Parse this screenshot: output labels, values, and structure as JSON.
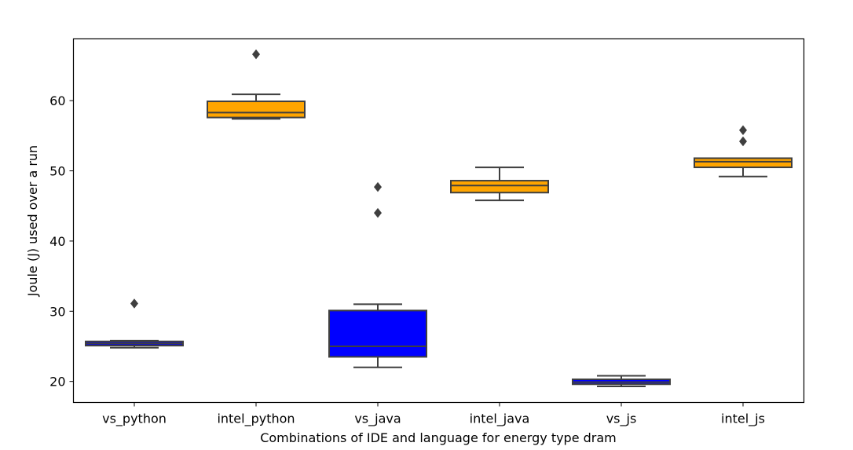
{
  "chart_data": {
    "type": "boxplot",
    "title": "",
    "xlabel": "Combinations of IDE and language for energy type dram",
    "ylabel": "Joule (J) used over a run",
    "ylim": [
      17.0,
      68.8
    ],
    "yticks": [
      20,
      30,
      40,
      50,
      60
    ],
    "grid": false,
    "categories": [
      "vs_python",
      "intel_python",
      "vs_java",
      "intel_java",
      "vs_js",
      "intel_js"
    ],
    "boxes": [
      {
        "category": "vs_python",
        "color": "#0000ff",
        "whisker_low": 24.8,
        "q1": 25.1,
        "median": 25.4,
        "q3": 25.7,
        "whisker_high": 25.8,
        "outliers": [
          31.1
        ]
      },
      {
        "category": "intel_python",
        "color": "#ffa500",
        "whisker_low": 57.4,
        "q1": 57.6,
        "median": 58.3,
        "q3": 59.9,
        "whisker_high": 60.9,
        "outliers": [
          66.6
        ]
      },
      {
        "category": "vs_java",
        "color": "#0000ff",
        "whisker_low": 22.0,
        "q1": 23.5,
        "median": 25.0,
        "q3": 30.1,
        "whisker_high": 31.0,
        "outliers": [
          47.7,
          44.0
        ]
      },
      {
        "category": "intel_java",
        "color": "#ffa500",
        "whisker_low": 45.8,
        "q1": 46.9,
        "median": 47.9,
        "q3": 48.6,
        "whisker_high": 50.5,
        "outliers": []
      },
      {
        "category": "vs_js",
        "color": "#0000ff",
        "whisker_low": 19.3,
        "q1": 19.6,
        "median": 19.9,
        "q3": 20.3,
        "whisker_high": 20.8,
        "outliers": []
      },
      {
        "category": "intel_js",
        "color": "#ffa500",
        "whisker_low": 49.2,
        "q1": 50.5,
        "median": 51.3,
        "q3": 51.8,
        "whisker_high": 51.8,
        "outliers": [
          55.8,
          54.2
        ]
      }
    ],
    "line_color": "#3f3f3f"
  }
}
